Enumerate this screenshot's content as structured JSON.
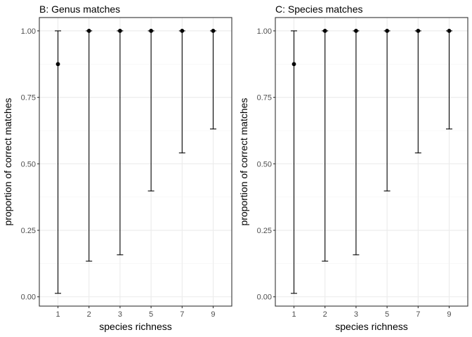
{
  "chart_data": [
    {
      "type": "errorbar-point",
      "title": "B: Genus matches",
      "xlabel": "species richness",
      "ylabel": "proportion of correct matches",
      "categories": [
        "1",
        "2",
        "3",
        "5",
        "7",
        "9"
      ],
      "values": [
        0.875,
        1.0,
        1.0,
        1.0,
        1.0,
        1.0
      ],
      "lower": [
        0.013,
        0.134,
        0.158,
        0.398,
        0.541,
        0.631
      ],
      "upper": [
        1.0,
        1.0,
        1.0,
        1.0,
        1.0,
        1.0
      ],
      "ylim": [
        -0.035,
        1.05
      ],
      "yticks": [
        0.0,
        0.25,
        0.5,
        0.75,
        1.0
      ],
      "ytick_labels": [
        "0.00",
        "0.25",
        "0.50",
        "0.75",
        "1.00"
      ],
      "grid": true
    },
    {
      "type": "errorbar-point",
      "title": "C: Species matches",
      "xlabel": "species richness",
      "ylabel": "proportion of correct matches",
      "categories": [
        "1",
        "2",
        "3",
        "5",
        "7",
        "9"
      ],
      "values": [
        0.875,
        1.0,
        1.0,
        1.0,
        1.0,
        1.0
      ],
      "lower": [
        0.013,
        0.134,
        0.158,
        0.398,
        0.541,
        0.631
      ],
      "upper": [
        1.0,
        1.0,
        1.0,
        1.0,
        1.0,
        1.0
      ],
      "ylim": [
        -0.035,
        1.05
      ],
      "yticks": [
        0.0,
        0.25,
        0.5,
        0.75,
        1.0
      ],
      "ytick_labels": [
        "0.00",
        "0.25",
        "0.50",
        "0.75",
        "1.00"
      ],
      "grid": true
    }
  ],
  "colors": {
    "grid_major": "#ebebeb",
    "grid_minor": "#f5f5f5",
    "panel_border": "#333333",
    "tick": "#333333",
    "mark": "#000000"
  }
}
